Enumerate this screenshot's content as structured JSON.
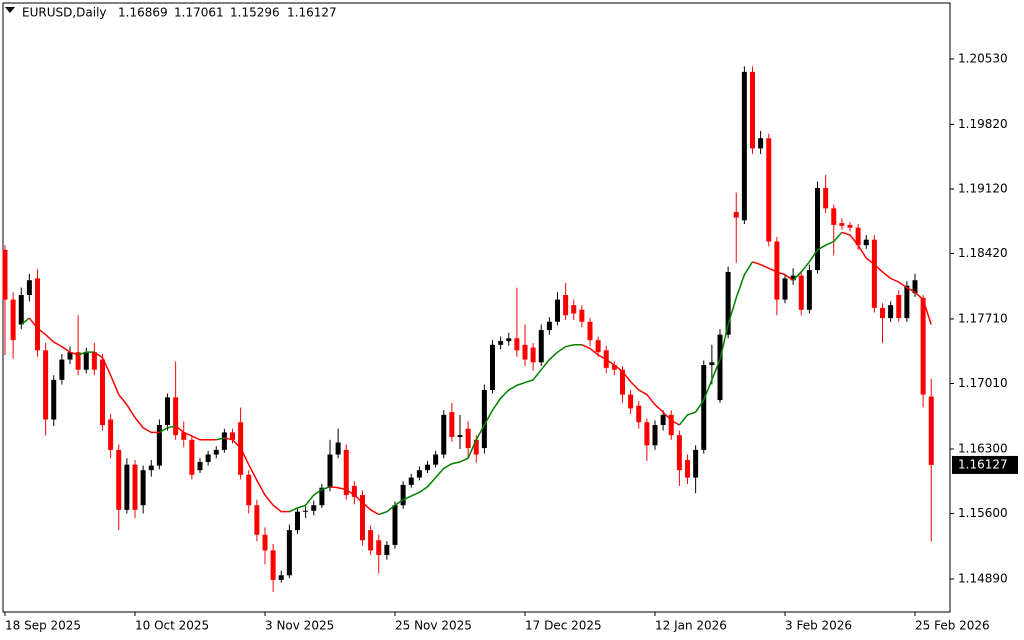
{
  "chart_data": {
    "type": "candlestick",
    "title": "EURUSD,Daily",
    "categories": [
      "18 Sep 2025",
      null,
      null,
      null,
      null,
      null,
      null,
      null,
      null,
      null,
      null,
      null,
      null,
      null,
      null,
      null,
      "10 Oct 2025",
      null,
      null,
      null,
      null,
      null,
      null,
      null,
      null,
      null,
      null,
      null,
      null,
      null,
      null,
      null,
      "3 Nov 2025",
      null,
      null,
      null,
      null,
      null,
      null,
      null,
      null,
      null,
      null,
      null,
      null,
      null,
      null,
      null,
      "25 Nov 2025",
      null,
      null,
      null,
      null,
      null,
      null,
      null,
      null,
      null,
      null,
      null,
      null,
      null,
      null,
      null,
      "17 Dec 2025",
      null,
      null,
      null,
      null,
      null,
      null,
      null,
      null,
      null,
      null,
      null,
      null,
      null,
      null,
      null,
      "12 Jan 2026",
      null,
      null,
      null,
      null,
      null,
      null,
      null,
      null,
      null,
      null,
      null,
      null,
      null,
      null,
      null,
      "3 Feb 2026",
      null,
      null,
      null,
      null,
      null,
      null,
      null,
      null,
      null,
      null,
      null,
      null,
      null,
      null,
      null,
      "25 Feb 2026",
      null,
      null
    ],
    "open": [
      1.1846,
      1.1792,
      1.1765,
      1.1797,
      1.1815,
      1.1737,
      1.1662,
      1.1705,
      1.1727,
      1.1735,
      1.1716,
      1.1735,
      1.1727,
      1.1662,
      1.1629,
      1.1564,
      1.1613,
      1.1569,
      1.1607,
      1.1612,
      1.1656,
      1.1686,
      1.1648,
      1.164,
      1.1607,
      1.1616,
      1.1624,
      1.1629,
      1.1648,
      1.1659,
      1.1602,
      1.1569,
      1.1537,
      1.152,
      1.1488,
      1.1493,
      1.1542,
      1.1562,
      1.1563,
      1.1569,
      1.1588,
      1.1624,
      1.1629,
      1.159,
      1.158,
      1.1542,
      1.1531,
      1.1515,
      1.1526,
      1.1569,
      1.1591,
      1.1599,
      1.1607,
      1.1613,
      1.1624,
      1.167,
      1.1643,
      1.1652,
      1.164,
      1.1631,
      1.1694,
      1.1743,
      1.1747,
      1.175,
      1.1743,
      1.174,
      1.1724,
      1.1759,
      1.1768,
      1.1797,
      1.1786,
      1.1781,
      1.1768,
      1.1748,
      1.1737,
      1.1721,
      1.1716,
      1.1689,
      1.1677,
      1.1659,
      1.1634,
      1.1656,
      1.1667,
      1.1645,
      1.1618,
      1.1599,
      1.1629,
      1.1721,
      1.1683,
      1.1754,
      1.1887,
      1.1878,
      1.2039,
      1.1956,
      1.1967,
      1.1855,
      1.1792,
      1.1813,
      1.1818,
      1.1781,
      1.1824,
      1.1913,
      1.1891,
      1.1875,
      1.1873,
      1.187,
      1.1851,
      1.1857,
      1.1783,
      1.1772,
      1.1797,
      1.1772,
      1.1799,
      1.1794,
      1.16869
    ],
    "high": [
      1.1851,
      1.18,
      1.1805,
      1.182,
      1.1825,
      1.1745,
      1.171,
      1.1733,
      1.1741,
      1.1775,
      1.174,
      1.1745,
      1.1733,
      1.1668,
      1.1635,
      1.162,
      1.1618,
      1.1612,
      1.1618,
      1.1662,
      1.169,
      1.1725,
      1.166,
      1.1645,
      1.162,
      1.1628,
      1.1633,
      1.1652,
      1.1652,
      1.1675,
      1.1607,
      1.1575,
      1.1545,
      1.1527,
      1.1498,
      1.1548,
      1.1567,
      1.1568,
      1.1574,
      1.1592,
      1.164,
      1.1652,
      1.1635,
      1.1595,
      1.1585,
      1.1547,
      1.1537,
      1.153,
      1.1573,
      1.1595,
      1.1603,
      1.1611,
      1.1617,
      1.1628,
      1.1672,
      1.168,
      1.1667,
      1.166,
      1.1645,
      1.17,
      1.1748,
      1.1752,
      1.1756,
      1.1805,
      1.1765,
      1.1745,
      1.1765,
      1.1773,
      1.18,
      1.181,
      1.1792,
      1.1786,
      1.1772,
      1.1752,
      1.1742,
      1.1725,
      1.172,
      1.1694,
      1.1682,
      1.1663,
      1.1661,
      1.1672,
      1.1672,
      1.165,
      1.1624,
      1.1634,
      1.1726,
      1.1743,
      1.176,
      1.1828,
      1.1908,
      1.2045,
      1.2045,
      1.1975,
      1.1972,
      1.186,
      1.182,
      1.1826,
      1.1822,
      1.183,
      1.192,
      1.1927,
      1.1895,
      1.188,
      1.1876,
      1.1874,
      1.1862,
      1.1862,
      1.1788,
      1.179,
      1.1802,
      1.1812,
      1.182,
      1.1797,
      1.17061
    ],
    "low": [
      1.1732,
      1.1728,
      1.176,
      1.179,
      1.173,
      1.1645,
      1.1655,
      1.17,
      1.1722,
      1.171,
      1.1712,
      1.171,
      1.165,
      1.162,
      1.1542,
      1.156,
      1.1555,
      1.156,
      1.16,
      1.1608,
      1.165,
      1.164,
      1.1632,
      1.1597,
      1.1604,
      1.1612,
      1.162,
      1.1626,
      1.1636,
      1.1597,
      1.156,
      1.153,
      1.1505,
      1.1475,
      1.1485,
      1.149,
      1.1538,
      1.1555,
      1.1558,
      1.1566,
      1.1584,
      1.162,
      1.1575,
      1.157,
      1.1525,
      1.1515,
      1.1495,
      1.151,
      1.1522,
      1.1565,
      1.1588,
      1.1596,
      1.1604,
      1.161,
      1.162,
      1.1638,
      1.163,
      1.162,
      1.1615,
      1.1625,
      1.169,
      1.1738,
      1.1742,
      1.173,
      1.172,
      1.1715,
      1.172,
      1.1754,
      1.1764,
      1.177,
      1.177,
      1.1762,
      1.1742,
      1.173,
      1.1712,
      1.171,
      1.168,
      1.1668,
      1.1652,
      1.1617,
      1.1629,
      1.165,
      1.164,
      1.159,
      1.1592,
      1.1582,
      1.1625,
      1.17,
      1.168,
      1.175,
      1.1832,
      1.1874,
      1.195,
      1.195,
      1.185,
      1.1775,
      1.1788,
      1.1808,
      1.1775,
      1.1777,
      1.182,
      1.1886,
      1.184,
      1.1868,
      1.1866,
      1.1846,
      1.1847,
      1.1778,
      1.1745,
      1.1768,
      1.1768,
      1.1768,
      1.1795,
      1.1675,
      1.15296
    ],
    "close": [
      1.1792,
      1.1748,
      1.1797,
      1.1813,
      1.1737,
      1.1662,
      1.1705,
      1.1727,
      1.1735,
      1.1716,
      1.1735,
      1.1716,
      1.1656,
      1.1629,
      1.1564,
      1.1613,
      1.1564,
      1.1607,
      1.1612,
      1.1656,
      1.1686,
      1.1645,
      1.164,
      1.1602,
      1.1616,
      1.1624,
      1.1629,
      1.1648,
      1.164,
      1.1602,
      1.1569,
      1.1537,
      1.152,
      1.1488,
      1.1493,
      1.1542,
      1.1562,
      1.1563,
      1.1569,
      1.1588,
      1.1624,
      1.1637,
      1.158,
      1.1578,
      1.1531,
      1.152,
      1.1515,
      1.1526,
      1.1569,
      1.1591,
      1.1599,
      1.1607,
      1.1613,
      1.1624,
      1.1667,
      1.1643,
      1.1645,
      1.1631,
      1.1624,
      1.1694,
      1.1743,
      1.1747,
      1.175,
      1.1737,
      1.1727,
      1.1724,
      1.1759,
      1.1768,
      1.1792,
      1.1775,
      1.1777,
      1.1768,
      1.1748,
      1.1735,
      1.1718,
      1.1716,
      1.1689,
      1.1674,
      1.1659,
      1.1634,
      1.1656,
      1.1667,
      1.1645,
      1.1607,
      1.1599,
      1.1629,
      1.1721,
      1.1724,
      1.1754,
      1.1822,
      1.1881,
      1.2039,
      1.1956,
      1.1967,
      1.1855,
      1.1792,
      1.1815,
      1.1818,
      1.1781,
      1.1824,
      1.1913,
      1.1891,
      1.1873,
      1.1872,
      1.187,
      1.1851,
      1.1857,
      1.1783,
      1.1772,
      1.1786,
      1.1772,
      1.1807,
      1.1813,
      1.1689,
      1.16127
    ],
    "up_color": "#000000",
    "down_color": "#ff0000",
    "ma": {
      "values": [
        null,
        null,
        1.1765,
        1.1772,
        1.1761,
        1.1754,
        1.1746,
        1.1741,
        1.1735,
        1.1732,
        1.1735,
        1.1735,
        1.1729,
        1.171,
        1.1689,
        1.1678,
        1.1664,
        1.1653,
        1.1648,
        1.1648,
        1.1653,
        1.1655,
        1.1648,
        1.1644,
        1.164,
        1.164,
        1.164,
        1.1642,
        1.164,
        1.1631,
        1.1613,
        1.1596,
        1.158,
        1.1569,
        1.1562,
        1.1562,
        1.1566,
        1.1569,
        1.158,
        1.1586,
        1.1589,
        1.1588,
        1.1586,
        1.158,
        1.1572,
        1.1564,
        1.1559,
        1.1562,
        1.1569,
        1.1575,
        1.1579,
        1.1583,
        1.1589,
        1.1599,
        1.1609,
        1.1614,
        1.1616,
        1.162,
        1.164,
        1.1656,
        1.1672,
        1.1685,
        1.1694,
        1.1699,
        1.1702,
        1.1705,
        1.1716,
        1.1727,
        1.1735,
        1.1741,
        1.1743,
        1.1743,
        1.1739,
        1.1732,
        1.1727,
        1.1721,
        1.1714,
        1.1703,
        1.1694,
        1.1689,
        1.1678,
        1.167,
        1.1661,
        1.1656,
        1.1667,
        1.167,
        1.1683,
        1.1705,
        1.1727,
        1.1765,
        1.1794,
        1.1819,
        1.1833,
        1.183,
        1.1826,
        1.1822,
        1.1819,
        1.1813,
        1.1822,
        1.1833,
        1.1846,
        1.1851,
        1.1855,
        1.1865,
        1.1862,
        1.1851,
        1.1837,
        1.183,
        1.1822,
        1.1815,
        1.1811,
        1.1805,
        1.18,
        1.1792,
        1.1765
      ],
      "up_color": "#008000",
      "down_color": "#ff0000"
    },
    "ylim": [
      1.14532,
      1.21137
    ],
    "yticks": [
      {
        "value": 1.2053,
        "label": "1.20530"
      },
      {
        "value": 1.1982,
        "label": "1.19820"
      },
      {
        "value": 1.1912,
        "label": "1.19120"
      },
      {
        "value": 1.1842,
        "label": "1.18420"
      },
      {
        "value": 1.1771,
        "label": "1.17710"
      },
      {
        "value": 1.1701,
        "label": "1.17010"
      },
      {
        "value": 1.163,
        "label": "1.16300"
      },
      {
        "value": 1.156,
        "label": "1.15600"
      },
      {
        "value": 1.1489,
        "label": "1.14890"
      }
    ],
    "grid": false
  }
}
